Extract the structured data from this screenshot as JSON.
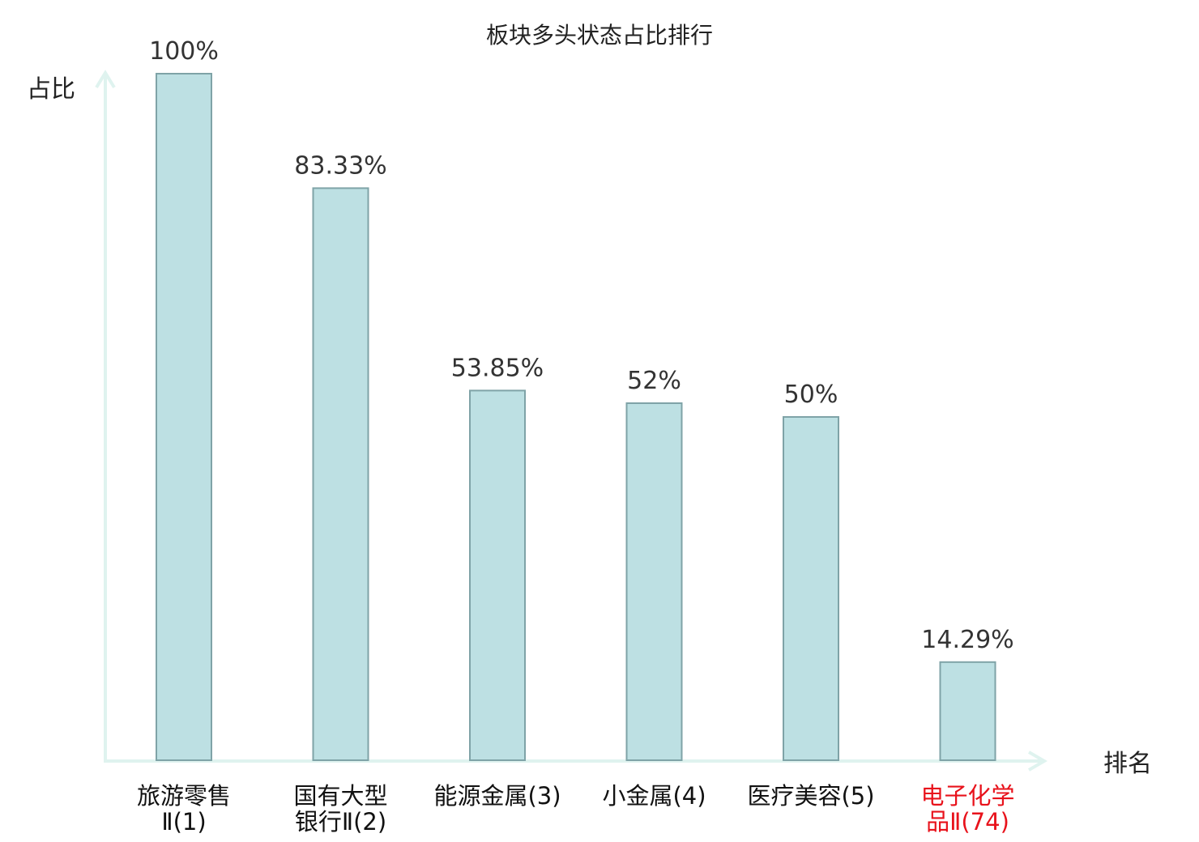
{
  "chart_data": {
    "type": "bar",
    "title": "板块多头状态占比排行",
    "ylabel": "占比",
    "xlabel": "排名",
    "ylim": [
      0,
      100
    ],
    "grid": false,
    "categories": [
      {
        "lines": [
          "旅游零售",
          "Ⅱ(1)"
        ],
        "highlight": false
      },
      {
        "lines": [
          "国有大型",
          "银行Ⅱ(2)"
        ],
        "highlight": false
      },
      {
        "lines": [
          "能源金属(3)"
        ],
        "highlight": false
      },
      {
        "lines": [
          "小金属(4)"
        ],
        "highlight": false
      },
      {
        "lines": [
          "医疗美容(5)"
        ],
        "highlight": false
      },
      {
        "lines": [
          "电子化学",
          "品Ⅱ(74)"
        ],
        "highlight": true
      }
    ],
    "values": [
      100,
      83.33,
      53.85,
      52,
      50,
      14.29
    ],
    "value_labels": [
      "100%",
      "83.33%",
      "53.85%",
      "52%",
      "50%",
      "14.29%"
    ]
  },
  "colors": {
    "bar_fill": "#bde0e3",
    "bar_stroke": "#7fa3a7",
    "axis": "#dff3ef",
    "highlight": "#e8121b"
  }
}
